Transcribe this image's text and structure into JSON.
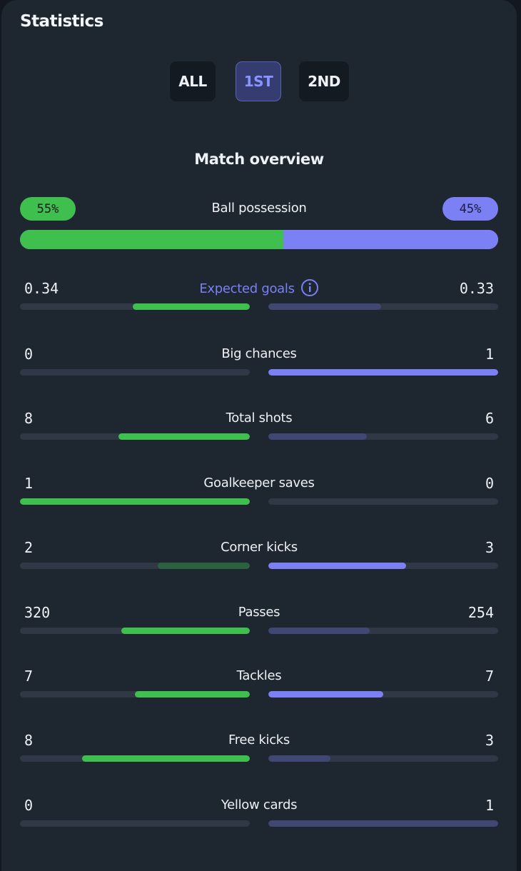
{
  "title": "Statistics",
  "periods": {
    "all": "ALL",
    "first": "1ST",
    "second": "2ND",
    "active": "first"
  },
  "section_title": "Match overview",
  "possession": {
    "label": "Ball possession",
    "home_text": "55%",
    "away_text": "45%",
    "home": 55,
    "away": 45,
    "home_color": "#3ebf4e",
    "away_color": "#7b80f4"
  },
  "stats": [
    {
      "label": "Expected goals",
      "home": "0.34",
      "away": "0.33",
      "home_fill": 0.51,
      "away_fill": 0.49,
      "home_style": "green",
      "away_style": "purple-dim",
      "info_icon": "info-icon"
    },
    {
      "label": "Big chances",
      "home": "0",
      "away": "1",
      "home_fill": 0,
      "away_fill": 1,
      "home_style": "green",
      "away_style": "purple"
    },
    {
      "label": "Total shots",
      "home": "8",
      "away": "6",
      "home_fill": 0.57,
      "away_fill": 0.43,
      "home_style": "green",
      "away_style": "purple-dim"
    },
    {
      "label": "Goalkeeper saves",
      "home": "1",
      "away": "0",
      "home_fill": 1,
      "away_fill": 0,
      "home_style": "green",
      "away_style": "purple-dim"
    },
    {
      "label": "Corner kicks",
      "home": "2",
      "away": "3",
      "home_fill": 0.4,
      "away_fill": 0.6,
      "home_style": "green-dim",
      "away_style": "purple"
    },
    {
      "label": "Passes",
      "home": "320",
      "away": "254",
      "home_fill": 0.56,
      "away_fill": 0.44,
      "home_style": "green",
      "away_style": "purple-dim"
    },
    {
      "label": "Tackles",
      "home": "7",
      "away": "7",
      "home_fill": 0.5,
      "away_fill": 0.5,
      "home_style": "green",
      "away_style": "purple"
    },
    {
      "label": "Free kicks",
      "home": "8",
      "away": "3",
      "home_fill": 0.73,
      "away_fill": 0.27,
      "home_style": "green",
      "away_style": "purple-dim"
    },
    {
      "label": "Yellow cards",
      "home": "0",
      "away": "1",
      "home_fill": 0,
      "away_fill": 1,
      "home_style": "green",
      "away_style": "purple-dim"
    }
  ]
}
